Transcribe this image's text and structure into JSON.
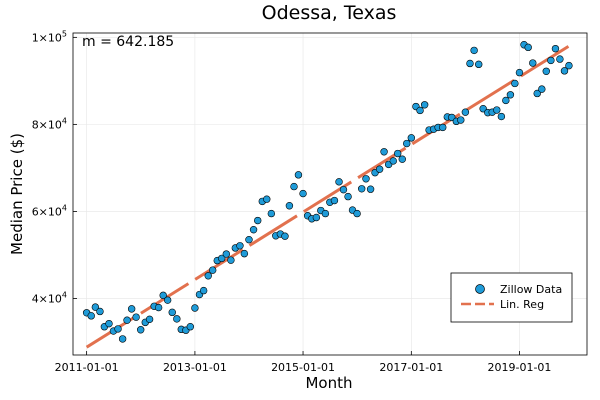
{
  "chart_data": {
    "type": "scatter",
    "title": "Odessa, Texas",
    "xlabel": "Month",
    "ylabel": "Median Price ($)",
    "annotation": "m = 642.185",
    "xlim": [
      "2010-10-01",
      "2020-04-01"
    ],
    "ylim": [
      27000,
      101000
    ],
    "x_ticks": [
      "2011-01-01",
      "2013-01-01",
      "2015-01-01",
      "2017-01-01",
      "2019-01-01"
    ],
    "y_ticks": [
      {
        "value": 40000,
        "base": "4×10",
        "exp": "4"
      },
      {
        "value": 60000,
        "base": "6×10",
        "exp": "4"
      },
      {
        "value": 80000,
        "base": "8×10",
        "exp": "4"
      },
      {
        "value": 100000,
        "base": "1×10",
        "exp": "5"
      }
    ],
    "grid": true,
    "legend_position": "bottom-right",
    "series": [
      {
        "name": "Zillow Data",
        "type": "scatter",
        "color": "#1f9bd8",
        "points": [
          [
            "2011-01-01",
            36700
          ],
          [
            "2011-02-01",
            36000
          ],
          [
            "2011-03-01",
            38000
          ],
          [
            "2011-04-01",
            37000
          ],
          [
            "2011-05-01",
            33500
          ],
          [
            "2011-06-01",
            34200
          ],
          [
            "2011-07-01",
            32500
          ],
          [
            "2011-08-01",
            33000
          ],
          [
            "2011-09-01",
            30700
          ],
          [
            "2011-10-01",
            35000
          ],
          [
            "2011-11-01",
            37600
          ],
          [
            "2011-12-01",
            35700
          ],
          [
            "2012-01-01",
            32800
          ],
          [
            "2012-02-01",
            34500
          ],
          [
            "2012-03-01",
            35200
          ],
          [
            "2012-04-01",
            38200
          ],
          [
            "2012-05-01",
            37900
          ],
          [
            "2012-06-01",
            40700
          ],
          [
            "2012-07-01",
            39600
          ],
          [
            "2012-08-01",
            36800
          ],
          [
            "2012-09-01",
            35300
          ],
          [
            "2012-10-01",
            32900
          ],
          [
            "2012-11-01",
            32700
          ],
          [
            "2012-12-01",
            33500
          ],
          [
            "2013-01-01",
            37800
          ],
          [
            "2013-02-01",
            40900
          ],
          [
            "2013-03-01",
            41800
          ],
          [
            "2013-04-01",
            45200
          ],
          [
            "2013-05-01",
            46500
          ],
          [
            "2013-06-01",
            48700
          ],
          [
            "2013-07-01",
            49200
          ],
          [
            "2013-08-01",
            50200
          ],
          [
            "2013-09-01",
            48800
          ],
          [
            "2013-10-01",
            51600
          ],
          [
            "2013-11-01",
            52100
          ],
          [
            "2013-12-01",
            50300
          ],
          [
            "2014-01-01",
            53500
          ],
          [
            "2014-02-01",
            55800
          ],
          [
            "2014-03-01",
            57900
          ],
          [
            "2014-04-01",
            62300
          ],
          [
            "2014-05-01",
            62800
          ],
          [
            "2014-06-01",
            59500
          ],
          [
            "2014-07-01",
            54400
          ],
          [
            "2014-08-01",
            54800
          ],
          [
            "2014-09-01",
            54300
          ],
          [
            "2014-10-01",
            61300
          ],
          [
            "2014-11-01",
            65700
          ],
          [
            "2014-12-01",
            68400
          ],
          [
            "2015-01-01",
            64100
          ],
          [
            "2015-02-01",
            59000
          ],
          [
            "2015-03-01",
            58300
          ],
          [
            "2015-04-01",
            58600
          ],
          [
            "2015-05-01",
            60200
          ],
          [
            "2015-06-01",
            59500
          ],
          [
            "2015-07-01",
            62100
          ],
          [
            "2015-08-01",
            62500
          ],
          [
            "2015-09-01",
            66800
          ],
          [
            "2015-10-01",
            65000
          ],
          [
            "2015-11-01",
            63400
          ],
          [
            "2015-12-01",
            60300
          ],
          [
            "2016-01-01",
            59500
          ],
          [
            "2016-02-01",
            65200
          ],
          [
            "2016-03-01",
            67500
          ],
          [
            "2016-04-01",
            65100
          ],
          [
            "2016-05-01",
            68900
          ],
          [
            "2016-06-01",
            69700
          ],
          [
            "2016-07-01",
            73700
          ],
          [
            "2016-08-01",
            70800
          ],
          [
            "2016-09-01",
            71600
          ],
          [
            "2016-10-01",
            73300
          ],
          [
            "2016-11-01",
            72000
          ],
          [
            "2016-12-01",
            75600
          ],
          [
            "2017-01-01",
            76900
          ],
          [
            "2017-02-01",
            84100
          ],
          [
            "2017-03-01",
            83200
          ],
          [
            "2017-04-01",
            84500
          ],
          [
            "2017-05-01",
            78700
          ],
          [
            "2017-06-01",
            78900
          ],
          [
            "2017-07-01",
            79300
          ],
          [
            "2017-08-01",
            79300
          ],
          [
            "2017-09-01",
            81700
          ],
          [
            "2017-10-01",
            81600
          ],
          [
            "2017-11-01",
            80700
          ],
          [
            "2017-12-01",
            81000
          ],
          [
            "2018-01-01",
            82800
          ],
          [
            "2018-02-01",
            94000
          ],
          [
            "2018-03-01",
            97000
          ],
          [
            "2018-04-01",
            93800
          ],
          [
            "2018-05-01",
            83600
          ],
          [
            "2018-06-01",
            82700
          ],
          [
            "2018-07-01",
            82800
          ],
          [
            "2018-08-01",
            83300
          ],
          [
            "2018-09-01",
            81800
          ],
          [
            "2018-10-01",
            85500
          ],
          [
            "2018-11-01",
            86800
          ],
          [
            "2018-12-01",
            89400
          ],
          [
            "2019-01-01",
            91900
          ],
          [
            "2019-02-01",
            98300
          ],
          [
            "2019-03-01",
            97700
          ],
          [
            "2019-04-01",
            94100
          ],
          [
            "2019-05-01",
            87100
          ],
          [
            "2019-06-01",
            88100
          ],
          [
            "2019-07-01",
            92200
          ],
          [
            "2019-08-01",
            94700
          ],
          [
            "2019-09-01",
            97400
          ],
          [
            "2019-10-01",
            95000
          ],
          [
            "2019-11-01",
            92300
          ],
          [
            "2019-12-01",
            93500
          ]
        ]
      },
      {
        "name": "Lin. Reg",
        "type": "line",
        "style": "dashed",
        "color": "#e2714e",
        "points": [
          [
            "2011-01-01",
            28800
          ],
          [
            "2019-12-01",
            98000
          ]
        ]
      }
    ]
  }
}
